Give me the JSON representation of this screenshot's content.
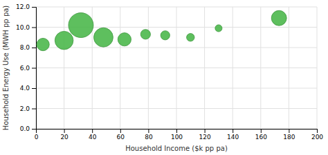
{
  "chart_data": {
    "type": "bubble",
    "xlabel": "Household Income ($k pp pa)",
    "ylabel": "Household Energy Use (MWH pp pa)",
    "x": [
      5,
      20,
      32,
      48,
      63,
      78,
      92,
      110,
      130,
      173
    ],
    "values": [
      8.3,
      8.7,
      10.2,
      9.0,
      8.8,
      9.3,
      9.2,
      9.0,
      9.9,
      10.9
    ],
    "sizes": [
      180,
      380,
      700,
      420,
      200,
      110,
      95,
      70,
      55,
      260
    ],
    "color": "#4cb84c",
    "xlim": [
      0,
      200
    ],
    "ylim": [
      0.0,
      12.0
    ],
    "xticks": [
      0,
      20,
      40,
      60,
      80,
      100,
      120,
      140,
      160,
      180,
      200
    ],
    "yticks": [
      {
        "value": 0.0,
        "label": "0.0"
      },
      {
        "value": 2.0,
        "label": "2.0"
      },
      {
        "value": 4.0,
        "label": "4.0"
      },
      {
        "value": 6.0,
        "label": "6.0"
      },
      {
        "value": 8.0,
        "label": "8.0"
      },
      {
        "value": 10.0,
        "label": "10.0"
      },
      {
        "value": 12.0,
        "label": "12.0"
      }
    ],
    "grid": true
  }
}
